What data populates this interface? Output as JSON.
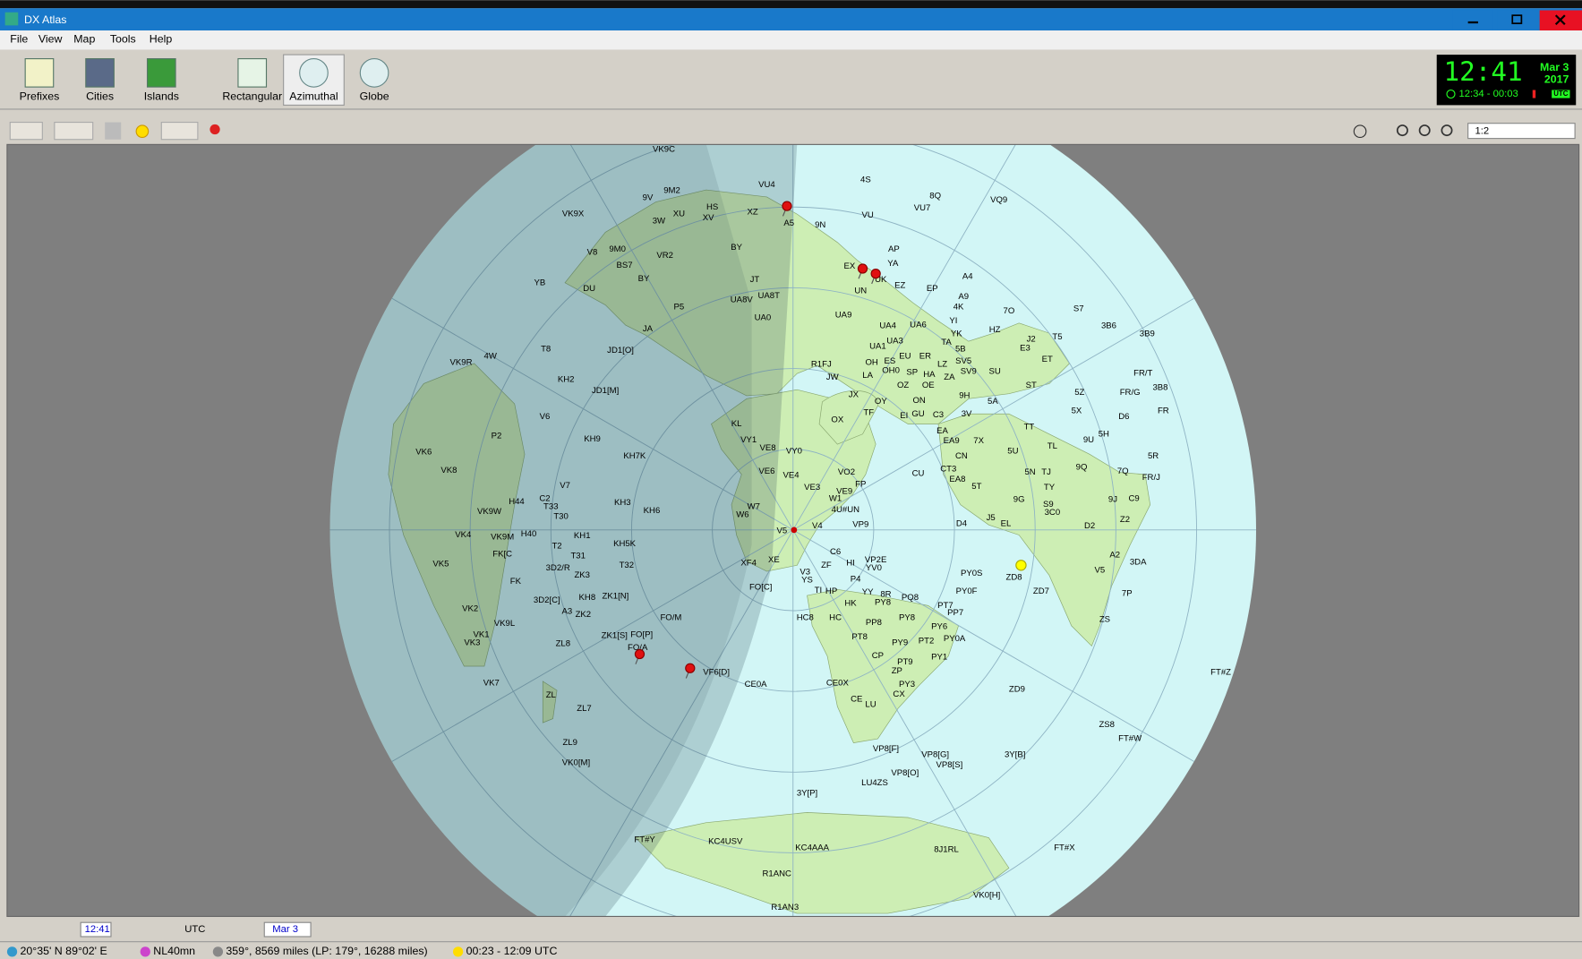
{
  "window": {
    "title": "DX Atlas"
  },
  "menu": [
    "File",
    "View",
    "Map",
    "Tools",
    "Help"
  ],
  "toolbar": [
    "Prefixes",
    "Cities",
    "Islands",
    "Rectangular",
    "Azimuthal",
    "Globe"
  ],
  "clock": {
    "time": "12:41",
    "date": "Mar 3",
    "year": "2017",
    "sun": "12:34 - 00:03",
    "zone": "UTC"
  },
  "zoom": "1:2",
  "time_bar": {
    "time": "12:41",
    "zone": "UTC",
    "date": "Mar 3"
  },
  "map": {
    "labels": [
      "VK9C",
      "4S",
      "VU4",
      "9M2",
      "8Q",
      "VQ9",
      "HS",
      "9V",
      "XU",
      "XZ",
      "VK9X",
      "3W",
      "XV",
      "VU",
      "9N",
      "VU7",
      "A5",
      "BY",
      "AP",
      "V8",
      "9M0",
      "VR2",
      "BS7",
      "BY",
      "EX",
      "YA",
      "UK",
      "A4",
      "YB",
      "DU",
      "JT",
      "EZ",
      "EP",
      "UN",
      "A9",
      "UA8V",
      "UA8T",
      "P5",
      "7O",
      "S7",
      "UA0",
      "UA9",
      "4K",
      "3B6",
      "3B9",
      "YI",
      "UA4",
      "UA6",
      "HZ",
      "J2",
      "T5",
      "JA",
      "T8",
      "JD1[O]",
      "E3",
      "UA1",
      "UA3",
      "YK",
      "TA",
      "5B",
      "ET",
      "KH2",
      "VK9R",
      "4W",
      "R1FJ",
      "OH",
      "ES",
      "EU",
      "ER",
      "SV5",
      "LZ",
      "JW",
      "LA",
      "OH0",
      "SP",
      "HA",
      "SV9",
      "SU",
      "ZA",
      "FR/T",
      "3B8",
      "FR/G",
      "JD1[M]",
      "OZ",
      "OE",
      "ST",
      "5Z",
      "JX",
      "OY",
      "TF",
      "ON",
      "9H",
      "5A",
      "GU",
      "C3",
      "3V",
      "EI",
      "V6",
      "KL",
      "OX",
      "FR",
      "D6",
      "5X",
      "TT",
      "EA",
      "5H",
      "VE8",
      "VY1",
      "VY0",
      "KH9",
      "EA9",
      "7X",
      "9U",
      "TL",
      "P2",
      "VK6",
      "CN",
      "5U",
      "5R",
      "KH7K",
      "CT3",
      "EA8",
      "5N",
      "TJ",
      "9Q",
      "7Q",
      "VE6",
      "VE4",
      "VO2",
      "CU",
      "FR/J",
      "VK8",
      "FP",
      "5T",
      "TY",
      "VE3",
      "VE9",
      "V7",
      "C2",
      "9G",
      "VK9W",
      "H44",
      "T33",
      "T30",
      "KH3",
      "KH6",
      "W7",
      "W1",
      "4U#UN",
      "S9",
      "3C0",
      "9J",
      "C9",
      "J5",
      "EL",
      "W6",
      "VK4",
      "VK9M",
      "H40",
      "KH1",
      "V5",
      "V4",
      "VP9",
      "D4",
      "D2",
      "Z2",
      "T2",
      "FK[C",
      "KH5K",
      "T31",
      "C6",
      "VP2E",
      "A2",
      "3DA",
      "VK5",
      "3D2/R",
      "T32",
      "XF4",
      "XE",
      "HI",
      "YV0",
      "V3",
      "ZF",
      "PY0S",
      "ZD8",
      "V5",
      "FK",
      "ZK3",
      "YS",
      "P4",
      "FO[C]",
      "TI",
      "HP",
      "YY",
      "8R",
      "PQ8",
      "ZD7",
      "PY0F",
      "7P",
      "3D2[C]",
      "KH8",
      "ZK1[N]",
      "HC8",
      "HC",
      "HK",
      "PY8",
      "PT7",
      "A3",
      "ZK2",
      "PP7",
      "ZS",
      "VK2",
      "FO/M",
      "PY8",
      "PP8",
      "PY6",
      "VK9L",
      "ZK1[S]",
      "FO[P]",
      "PT8",
      "PY9",
      "PT2",
      "PY0A",
      "VK1",
      "VK3",
      "ZL8",
      "FO/A",
      "CP",
      "PY1",
      "PT9",
      "ZP",
      "VF6[D]",
      "FT#Z",
      "VK7",
      "CE0A",
      "CE0X",
      "PY3",
      "CX",
      "ZD9",
      "ZL",
      "CE",
      "LU",
      "ZL7",
      "ZS8",
      "FT#W",
      "ZL9",
      "VP8[F]",
      "VP8[G]",
      "3Y[B]",
      "VK0[M]",
      "VP8[S]",
      "VP8[O]",
      "LU4ZS",
      "3Y[P]",
      "FT#Y",
      "KC4USV",
      "KC4AAA",
      "8J1RL",
      "FT#X",
      "R1ANC",
      "VK0[H]",
      "R1AN3"
    ]
  },
  "status": [
    "20°35' N 89°02' E",
    "NL40mn",
    "359°, 8569 miles (LP: 179°, 16288 miles)",
    "00:23 - 12:09 UTC"
  ]
}
